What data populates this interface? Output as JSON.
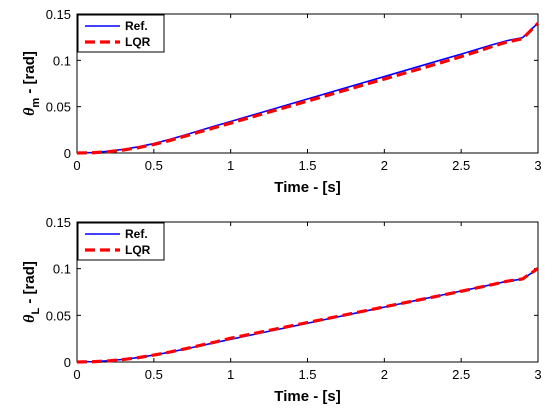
{
  "chart_data": [
    {
      "type": "line",
      "xlabel": "Time - [s]",
      "ylabel": {
        "symbol": "θ",
        "subscript": "m",
        "suffix": " - [rad]"
      },
      "xlim": [
        0,
        3
      ],
      "ylim": [
        0,
        0.15
      ],
      "xticks": [
        "0",
        "0.5",
        "1",
        "1.5",
        "2",
        "2.5",
        "3"
      ],
      "yticks": [
        "0",
        "0.05",
        "0.1",
        "0.15"
      ],
      "grid": false,
      "legend_position": "top-left",
      "series": [
        {
          "name": "Ref.",
          "color": "#0000ff",
          "style": "solid",
          "x": [
            0,
            0.1,
            0.2,
            0.3,
            0.4,
            0.5,
            0.6,
            0.7,
            0.8,
            0.9,
            1.0,
            1.2,
            1.4,
            1.6,
            1.8,
            2.0,
            2.2,
            2.4,
            2.5,
            2.6,
            2.7,
            2.8,
            2.9,
            3.0
          ],
          "y": [
            0,
            0.0005,
            0.0018,
            0.0039,
            0.0067,
            0.0102,
            0.0145,
            0.0193,
            0.0243,
            0.0292,
            0.034,
            0.0437,
            0.0534,
            0.0631,
            0.0728,
            0.0825,
            0.0922,
            0.1019,
            0.1067,
            0.1117,
            0.1167,
            0.1213,
            0.1245,
            0.1403
          ]
        },
        {
          "name": "LQR",
          "color": "#ff0000",
          "style": "dashed",
          "x": [
            0,
            0.1,
            0.2,
            0.3,
            0.4,
            0.5,
            0.6,
            0.7,
            0.8,
            0.9,
            1.0,
            1.2,
            1.4,
            1.6,
            1.8,
            2.0,
            2.2,
            2.4,
            2.5,
            2.6,
            2.7,
            2.8,
            2.9,
            3.0
          ],
          "y": [
            0,
            0.0003,
            0.0013,
            0.0032,
            0.0058,
            0.0092,
            0.0133,
            0.018,
            0.0228,
            0.0276,
            0.0322,
            0.0418,
            0.0513,
            0.0608,
            0.0703,
            0.0798,
            0.0893,
            0.099,
            0.104,
            0.1093,
            0.1148,
            0.1198,
            0.1234,
            0.14
          ]
        }
      ]
    },
    {
      "type": "line",
      "xlabel": "Time - [s]",
      "ylabel": {
        "symbol": "θ",
        "subscript": "L",
        "suffix": " - [rad]"
      },
      "xlim": [
        0,
        3
      ],
      "ylim": [
        0,
        0.15
      ],
      "xticks": [
        "0",
        "0.5",
        "1",
        "1.5",
        "2",
        "2.5",
        "3"
      ],
      "yticks": [
        "0",
        "0.05",
        "0.1",
        "0.15"
      ],
      "grid": false,
      "legend_position": "top-left",
      "series": [
        {
          "name": "Ref.",
          "color": "#0000ff",
          "style": "solid",
          "x": [
            0,
            0.1,
            0.2,
            0.3,
            0.4,
            0.5,
            0.6,
            0.7,
            0.8,
            0.9,
            1.0,
            1.2,
            1.4,
            1.6,
            1.8,
            2.0,
            2.2,
            2.4,
            2.5,
            2.6,
            2.7,
            2.8,
            2.9,
            3.0
          ],
          "y": [
            0,
            0.0004,
            0.0013,
            0.0028,
            0.0048,
            0.0074,
            0.0104,
            0.0138,
            0.0173,
            0.0208,
            0.0243,
            0.0312,
            0.0381,
            0.045,
            0.0519,
            0.0588,
            0.0657,
            0.0726,
            0.0761,
            0.0795,
            0.083,
            0.0866,
            0.0889,
            0.1
          ]
        },
        {
          "name": "LQR",
          "color": "#ff0000",
          "style": "dashed",
          "x": [
            0,
            0.1,
            0.2,
            0.3,
            0.4,
            0.5,
            0.6,
            0.7,
            0.8,
            0.9,
            1.0,
            1.2,
            1.4,
            1.6,
            1.8,
            2.0,
            2.2,
            2.4,
            2.5,
            2.6,
            2.7,
            2.8,
            2.9,
            3.0
          ],
          "y": [
            0,
            0.0003,
            0.0011,
            0.0026,
            0.0047,
            0.0074,
            0.0105,
            0.014,
            0.0177,
            0.0214,
            0.0255,
            0.0322,
            0.0389,
            0.0456,
            0.0523,
            0.059,
            0.0657,
            0.0724,
            0.0758,
            0.0793,
            0.0829,
            0.0866,
            0.089,
            0.1003
          ]
        }
      ]
    }
  ]
}
